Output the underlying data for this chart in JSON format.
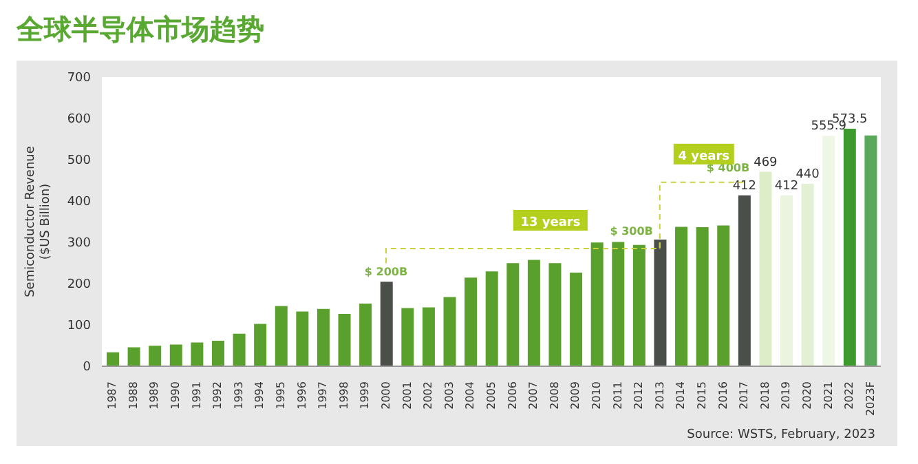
{
  "chart_data": {
    "type": "bar",
    "title": "全球半导体市场趋势",
    "ylabel": "Semiconductor Revenue\n($US Billion)",
    "categories": [
      "1987",
      "1988",
      "1989",
      "1990",
      "1991",
      "1992",
      "1993",
      "1994",
      "1995",
      "1996",
      "1997",
      "1998",
      "1999",
      "2000",
      "2001",
      "2002",
      "2003",
      "2004",
      "2005",
      "2006",
      "2007",
      "2008",
      "2009",
      "2010",
      "2011",
      "2012",
      "2013",
      "2014",
      "2015",
      "2016",
      "2017",
      "2018",
      "2019",
      "2020",
      "2021",
      "2022",
      "2023F"
    ],
    "values": [
      32,
      44,
      48,
      51,
      56,
      60,
      77,
      101,
      144,
      131,
      137,
      125,
      150,
      203,
      139,
      141,
      166,
      213,
      228,
      248,
      256,
      248,
      225,
      298,
      299,
      292,
      305,
      336,
      335,
      339,
      412,
      469,
      412,
      440,
      555.9,
      573.5,
      557
    ],
    "colors": [
      "#5aa02c",
      "#5aa02c",
      "#5aa02c",
      "#5aa02c",
      "#5aa02c",
      "#5aa02c",
      "#5aa02c",
      "#5aa02c",
      "#5aa02c",
      "#5aa02c",
      "#5aa02c",
      "#5aa02c",
      "#5aa02c",
      "#4a4f4a",
      "#5aa02c",
      "#5aa02c",
      "#5aa02c",
      "#5aa02c",
      "#5aa02c",
      "#5aa02c",
      "#5aa02c",
      "#5aa02c",
      "#5aa02c",
      "#5aa02c",
      "#5aa02c",
      "#5aa02c",
      "#4a4f4a",
      "#5aa02c",
      "#5aa02c",
      "#5aa02c",
      "#4a4f4a",
      "#dcedc8",
      "#eaf4df",
      "#e2f0d4",
      "#eef7e6",
      "#3f9a2e",
      "#5aa85a"
    ],
    "value_labels": [
      null,
      null,
      null,
      null,
      null,
      null,
      null,
      null,
      null,
      null,
      null,
      null,
      null,
      null,
      null,
      null,
      null,
      null,
      null,
      null,
      null,
      null,
      null,
      null,
      null,
      null,
      null,
      null,
      null,
      null,
      "412",
      "469",
      "412",
      "440",
      "555.9",
      "573.5",
      null
    ],
    "ylim": [
      0,
      700
    ],
    "yticks": [
      0,
      100,
      200,
      300,
      400,
      500,
      600,
      700
    ],
    "grid": false,
    "annotations": [
      {
        "text": "$ 200B",
        "x": "2000",
        "y": 203
      },
      {
        "text": "$ 300B",
        "x": "2013",
        "y": 305
      },
      {
        "text": "$ 400B",
        "x": "2017",
        "y": 412
      },
      "13 years",
      "4 years",
      "Source: WSTS, February, 2023"
    ]
  }
}
